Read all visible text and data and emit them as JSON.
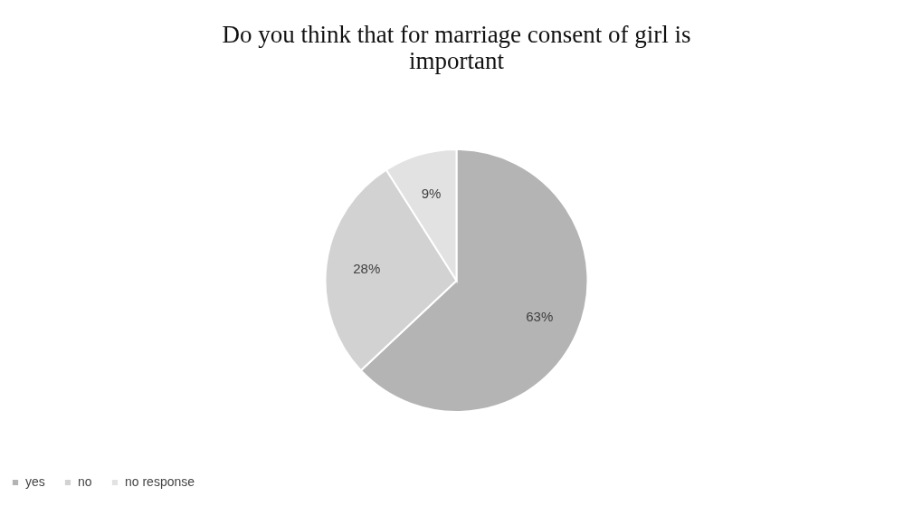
{
  "chart_data": {
    "type": "pie",
    "title": "Do you think that for marriage consent of girl is important",
    "categories": [
      "yes",
      "no",
      "no response"
    ],
    "values": [
      63,
      28,
      9
    ],
    "colors": [
      "#b4b4b4",
      "#d2d2d2",
      "#e2e2e2"
    ],
    "value_labels": [
      "63%",
      "28%",
      "9%"
    ],
    "legend": "bottom"
  }
}
